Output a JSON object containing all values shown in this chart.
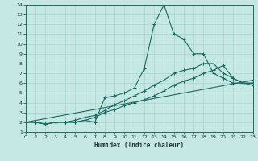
{
  "xlabel": "Humidex (Indice chaleur)",
  "xlim": [
    0,
    23
  ],
  "ylim": [
    1,
    14
  ],
  "xticks": [
    0,
    1,
    2,
    3,
    4,
    5,
    6,
    7,
    8,
    9,
    10,
    11,
    12,
    13,
    14,
    15,
    16,
    17,
    18,
    19,
    20,
    21,
    22,
    23
  ],
  "yticks": [
    1,
    2,
    3,
    4,
    5,
    6,
    7,
    8,
    9,
    10,
    11,
    12,
    13,
    14
  ],
  "bg_color": "#c5e8e4",
  "line_color": "#1a6b60",
  "grid_color": "#a8d5ce",
  "line1_x": [
    0,
    1,
    2,
    3,
    4,
    5,
    6,
    7,
    8,
    9,
    10,
    11,
    12,
    13,
    14,
    15,
    16,
    17,
    18,
    19,
    20,
    21,
    22,
    23
  ],
  "line1_y": [
    2,
    2,
    1.8,
    2,
    2,
    2,
    2.2,
    2,
    4.5,
    4.7,
    5,
    5.5,
    7.5,
    12,
    14,
    11,
    10.5,
    9,
    9,
    7,
    6.5,
    6,
    6,
    6
  ],
  "line2_x": [
    0,
    1,
    2,
    3,
    4,
    5,
    6,
    7,
    8,
    9,
    10,
    11,
    12,
    13,
    14,
    15,
    16,
    17,
    18,
    19,
    20,
    21,
    22,
    23
  ],
  "line2_y": [
    2,
    2,
    1.8,
    2,
    2,
    2.2,
    2.5,
    2.7,
    3.2,
    3.8,
    4.2,
    4.7,
    5.2,
    5.8,
    6.3,
    7,
    7.3,
    7.5,
    8,
    8,
    7,
    6.5,
    6,
    6
  ],
  "line3_x": [
    0,
    1,
    2,
    3,
    4,
    5,
    6,
    7,
    8,
    9,
    10,
    11,
    12,
    13,
    14,
    15,
    16,
    17,
    18,
    19,
    20,
    21,
    22,
    23
  ],
  "line3_y": [
    2,
    2,
    1.8,
    2,
    2,
    2,
    2.2,
    2.5,
    3,
    3.3,
    3.7,
    4,
    4.3,
    4.7,
    5.2,
    5.8,
    6.2,
    6.5,
    7,
    7.3,
    7.8,
    6.5,
    6,
    5.8
  ],
  "line4_x": [
    0,
    23
  ],
  "line4_y": [
    2,
    6.3
  ]
}
